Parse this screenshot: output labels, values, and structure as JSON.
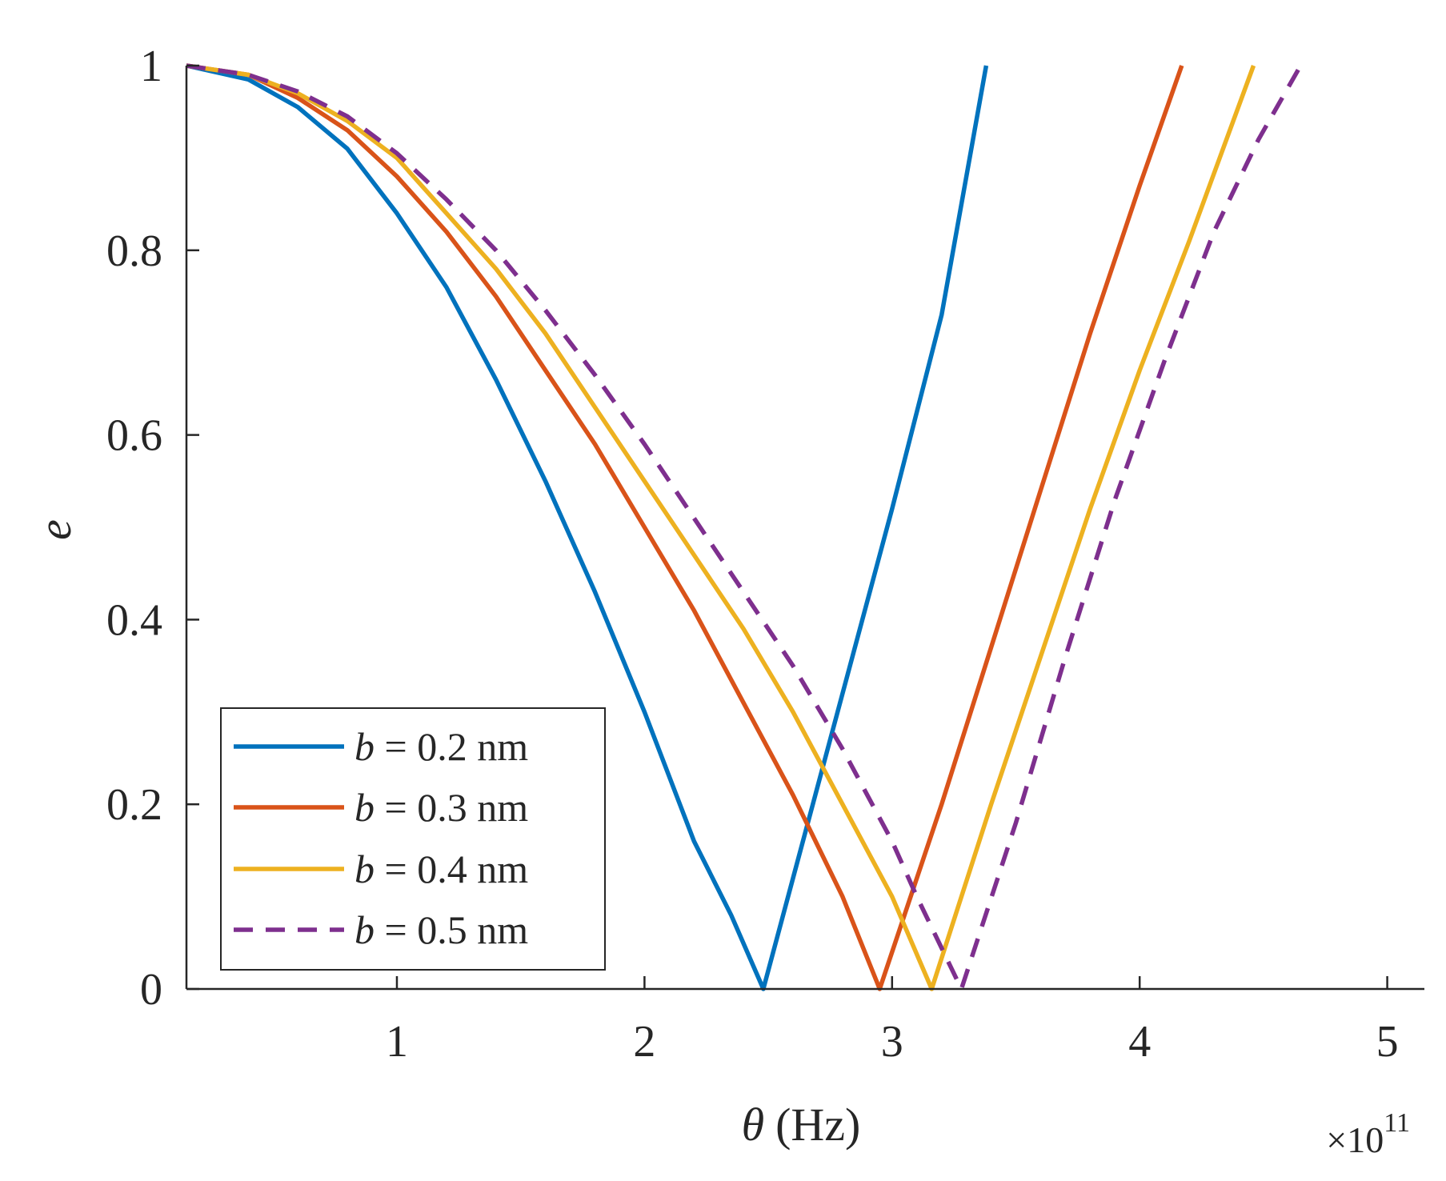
{
  "chart_data": {
    "type": "line",
    "title": "",
    "xlabel": {
      "symbol": "θ",
      "unit": "(Hz)"
    },
    "ylabel": "e",
    "x_exponent": {
      "prefix": "×10",
      "power": "11"
    },
    "xlim": [
      0.15,
      5.15
    ],
    "ylim": [
      0,
      1
    ],
    "x_scale": 100000000000.0,
    "xticks": [
      1,
      2,
      3,
      4,
      5
    ],
    "xtick_labels": [
      "1",
      "2",
      "3",
      "4",
      "5"
    ],
    "yticks": [
      0,
      0.2,
      0.4,
      0.6,
      0.8,
      1
    ],
    "ytick_labels": [
      "0",
      "0.2",
      "0.4",
      "0.6",
      "0.8",
      "1"
    ],
    "grid": false,
    "legend_position": "bottom-left",
    "series": [
      {
        "name": "b = 0.2 nm",
        "legend_symbol": "b",
        "legend_text": " = 0.2 nm",
        "color": "#0072BD",
        "dashed": false,
        "x": [
          0.15,
          0.4,
          0.6,
          0.8,
          1.0,
          1.2,
          1.4,
          1.6,
          1.8,
          2.0,
          2.2,
          2.35,
          2.48,
          2.6,
          2.8,
          3.0,
          3.2,
          3.38
        ],
        "y": [
          1.0,
          0.985,
          0.955,
          0.91,
          0.84,
          0.76,
          0.66,
          0.55,
          0.43,
          0.3,
          0.16,
          0.08,
          0.0,
          0.12,
          0.32,
          0.52,
          0.73,
          1.0
        ]
      },
      {
        "name": "b = 0.3 nm",
        "legend_symbol": "b",
        "legend_text": " = 0.3 nm",
        "color": "#D95319",
        "dashed": false,
        "x": [
          0.15,
          0.4,
          0.6,
          0.8,
          1.0,
          1.2,
          1.4,
          1.6,
          1.8,
          2.0,
          2.2,
          2.4,
          2.6,
          2.8,
          2.95,
          3.2,
          3.4,
          3.6,
          3.8,
          4.0,
          4.17
        ],
        "y": [
          1.0,
          0.99,
          0.965,
          0.93,
          0.88,
          0.82,
          0.75,
          0.67,
          0.59,
          0.5,
          0.41,
          0.31,
          0.21,
          0.1,
          0.0,
          0.2,
          0.37,
          0.54,
          0.71,
          0.87,
          1.0
        ]
      },
      {
        "name": "b = 0.4 nm",
        "legend_symbol": "b",
        "legend_text": " = 0.4 nm",
        "color": "#EDB120",
        "dashed": false,
        "x": [
          0.15,
          0.4,
          0.6,
          0.8,
          1.0,
          1.2,
          1.4,
          1.6,
          1.8,
          2.0,
          2.2,
          2.4,
          2.6,
          2.8,
          3.0,
          3.16,
          3.4,
          3.6,
          3.8,
          4.0,
          4.2,
          4.46
        ],
        "y": [
          1.0,
          0.99,
          0.97,
          0.94,
          0.9,
          0.84,
          0.78,
          0.71,
          0.63,
          0.55,
          0.47,
          0.39,
          0.3,
          0.2,
          0.1,
          0.0,
          0.2,
          0.36,
          0.52,
          0.67,
          0.81,
          1.0
        ]
      },
      {
        "name": "b = 0.5 nm",
        "legend_symbol": "b",
        "legend_text": " = 0.5 nm",
        "color": "#7E2F8E",
        "dashed": true,
        "x": [
          0.15,
          0.4,
          0.6,
          0.8,
          1.0,
          1.2,
          1.4,
          1.6,
          1.8,
          2.0,
          2.2,
          2.4,
          2.6,
          2.8,
          3.0,
          3.1,
          3.28,
          3.5,
          3.7,
          3.9,
          4.1,
          4.3,
          4.48,
          4.65
        ],
        "y": [
          1.0,
          0.99,
          0.972,
          0.945,
          0.905,
          0.855,
          0.8,
          0.735,
          0.665,
          0.59,
          0.51,
          0.43,
          0.35,
          0.26,
          0.16,
          0.1,
          0.0,
          0.18,
          0.36,
          0.53,
          0.68,
          0.82,
          0.92,
          1.0
        ]
      }
    ]
  }
}
